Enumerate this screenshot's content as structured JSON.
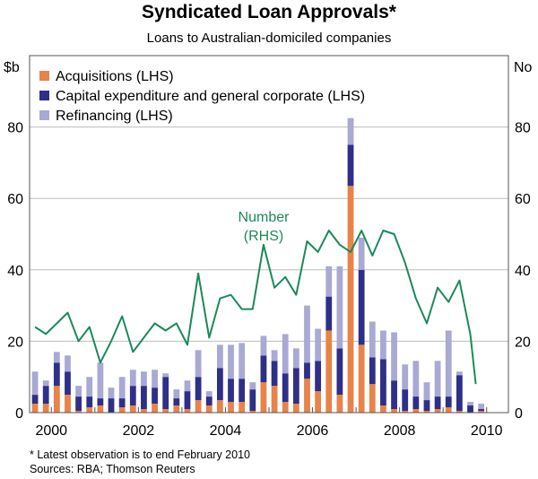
{
  "title": "Syndicated Loan Approvals*",
  "subtitle": "Loans to Australian-domiciled companies",
  "notes": {
    "footnote": "*   Latest observation is to end February 2010",
    "sources": "Sources: RBA; Thomson Reuters"
  },
  "colors": {
    "acquisitions": "#e8834a",
    "capex": "#2e2f88",
    "refinancing": "#a9a9d4",
    "number_line": "#1a8a5a",
    "grid": "#bdbdbd"
  },
  "chart_data": {
    "type": "bar",
    "stacked": true,
    "left_axis_unit": "$b",
    "right_axis_unit": "No",
    "ylim": [
      0,
      100
    ],
    "y_ticks": [
      "0",
      "20",
      "40",
      "60",
      "80"
    ],
    "x_ticks": [
      "2000",
      "2002",
      "2004",
      "2006",
      "2008",
      "2010"
    ],
    "x_range": [
      1999.5,
      2010.5
    ],
    "legend": [
      "Acquisitions (LHS)",
      "Capital expenditure and general corporate (LHS)",
      "Refinancing (LHS)"
    ],
    "line_label": [
      "Number",
      "(RHS)"
    ],
    "x": [
      1999.625,
      1999.875,
      2000.125,
      2000.375,
      2000.625,
      2000.875,
      2001.125,
      2001.375,
      2001.625,
      2001.875,
      2002.125,
      2002.375,
      2002.625,
      2002.875,
      2003.125,
      2003.375,
      2003.625,
      2003.875,
      2004.125,
      2004.375,
      2004.625,
      2004.875,
      2005.125,
      2005.375,
      2005.625,
      2005.875,
      2006.125,
      2006.375,
      2006.625,
      2006.875,
      2007.125,
      2007.375,
      2007.625,
      2007.875,
      2008.125,
      2008.375,
      2008.625,
      2008.875,
      2009.125,
      2009.375,
      2009.625,
      2009.875
    ],
    "series": [
      {
        "name": "Acquisitions (LHS)",
        "values": [
          2.5,
          2.5,
          7.5,
          5.0,
          0.5,
          1.5,
          2.0,
          0.0,
          1.5,
          2.0,
          1.0,
          2.5,
          1.0,
          2.0,
          1.0,
          3.5,
          2.0,
          3.5,
          3.0,
          3.0,
          0.5,
          8.5,
          7.5,
          3.0,
          2.5,
          9.5,
          6.0,
          23.0,
          5.0,
          63.5,
          19.0,
          8.0,
          2.0,
          1.0,
          0.5,
          1.0,
          0.5,
          1.0,
          1.5,
          0.5,
          0.0,
          0.5
        ]
      },
      {
        "name": "Capital expenditure and general corporate (LHS)",
        "values": [
          2.5,
          5.0,
          6.5,
          6.5,
          4.0,
          3.0,
          2.0,
          4.0,
          2.5,
          5.5,
          6.5,
          4.5,
          9.0,
          2.0,
          5.0,
          6.5,
          2.5,
          9.0,
          6.5,
          6.5,
          6.0,
          7.5,
          7.0,
          8.0,
          10.0,
          4.5,
          8.5,
          9.5,
          13.0,
          11.5,
          21.0,
          7.5,
          13.0,
          8.0,
          6.0,
          3.5,
          3.0,
          3.5,
          3.0,
          10.0,
          2.0,
          0.5
        ]
      },
      {
        "name": "Refinancing (LHS)",
        "values": [
          6.5,
          1.5,
          3.0,
          4.5,
          3.0,
          5.5,
          10.0,
          3.0,
          6.0,
          4.5,
          4.0,
          5.0,
          1.0,
          2.5,
          3.0,
          7.5,
          1.5,
          6.5,
          9.5,
          10.0,
          2.0,
          5.5,
          3.0,
          11.0,
          5.5,
          16.0,
          9.0,
          8.5,
          23.0,
          7.5,
          9.0,
          10.0,
          8.0,
          13.5,
          7.0,
          10.0,
          5.0,
          10.0,
          18.5,
          1.0,
          1.0,
          1.5
        ]
      }
    ],
    "number_series": {
      "name": "Number (RHS)",
      "x": [
        1999.625,
        1999.875,
        2000.125,
        2000.375,
        2000.625,
        2000.875,
        2001.125,
        2001.375,
        2001.625,
        2001.875,
        2002.125,
        2002.375,
        2002.625,
        2002.875,
        2003.125,
        2003.375,
        2003.625,
        2003.875,
        2004.125,
        2004.375,
        2004.625,
        2004.875,
        2005.125,
        2005.375,
        2005.625,
        2005.875,
        2006.125,
        2006.375,
        2006.625,
        2006.875,
        2007.125,
        2007.375,
        2007.625,
        2007.875,
        2008.125,
        2008.375,
        2008.625,
        2008.875,
        2009.125,
        2009.375,
        2009.625,
        2009.75
      ],
      "values": [
        24,
        22,
        25,
        28,
        20,
        24,
        14,
        20,
        27,
        17,
        21,
        25,
        23,
        25,
        19,
        39,
        21,
        32,
        33,
        29,
        29,
        47,
        35,
        38,
        33,
        48,
        45,
        51,
        47,
        45,
        51,
        44,
        51,
        50,
        42,
        32,
        25,
        35,
        31,
        37,
        22,
        8
      ]
    }
  }
}
